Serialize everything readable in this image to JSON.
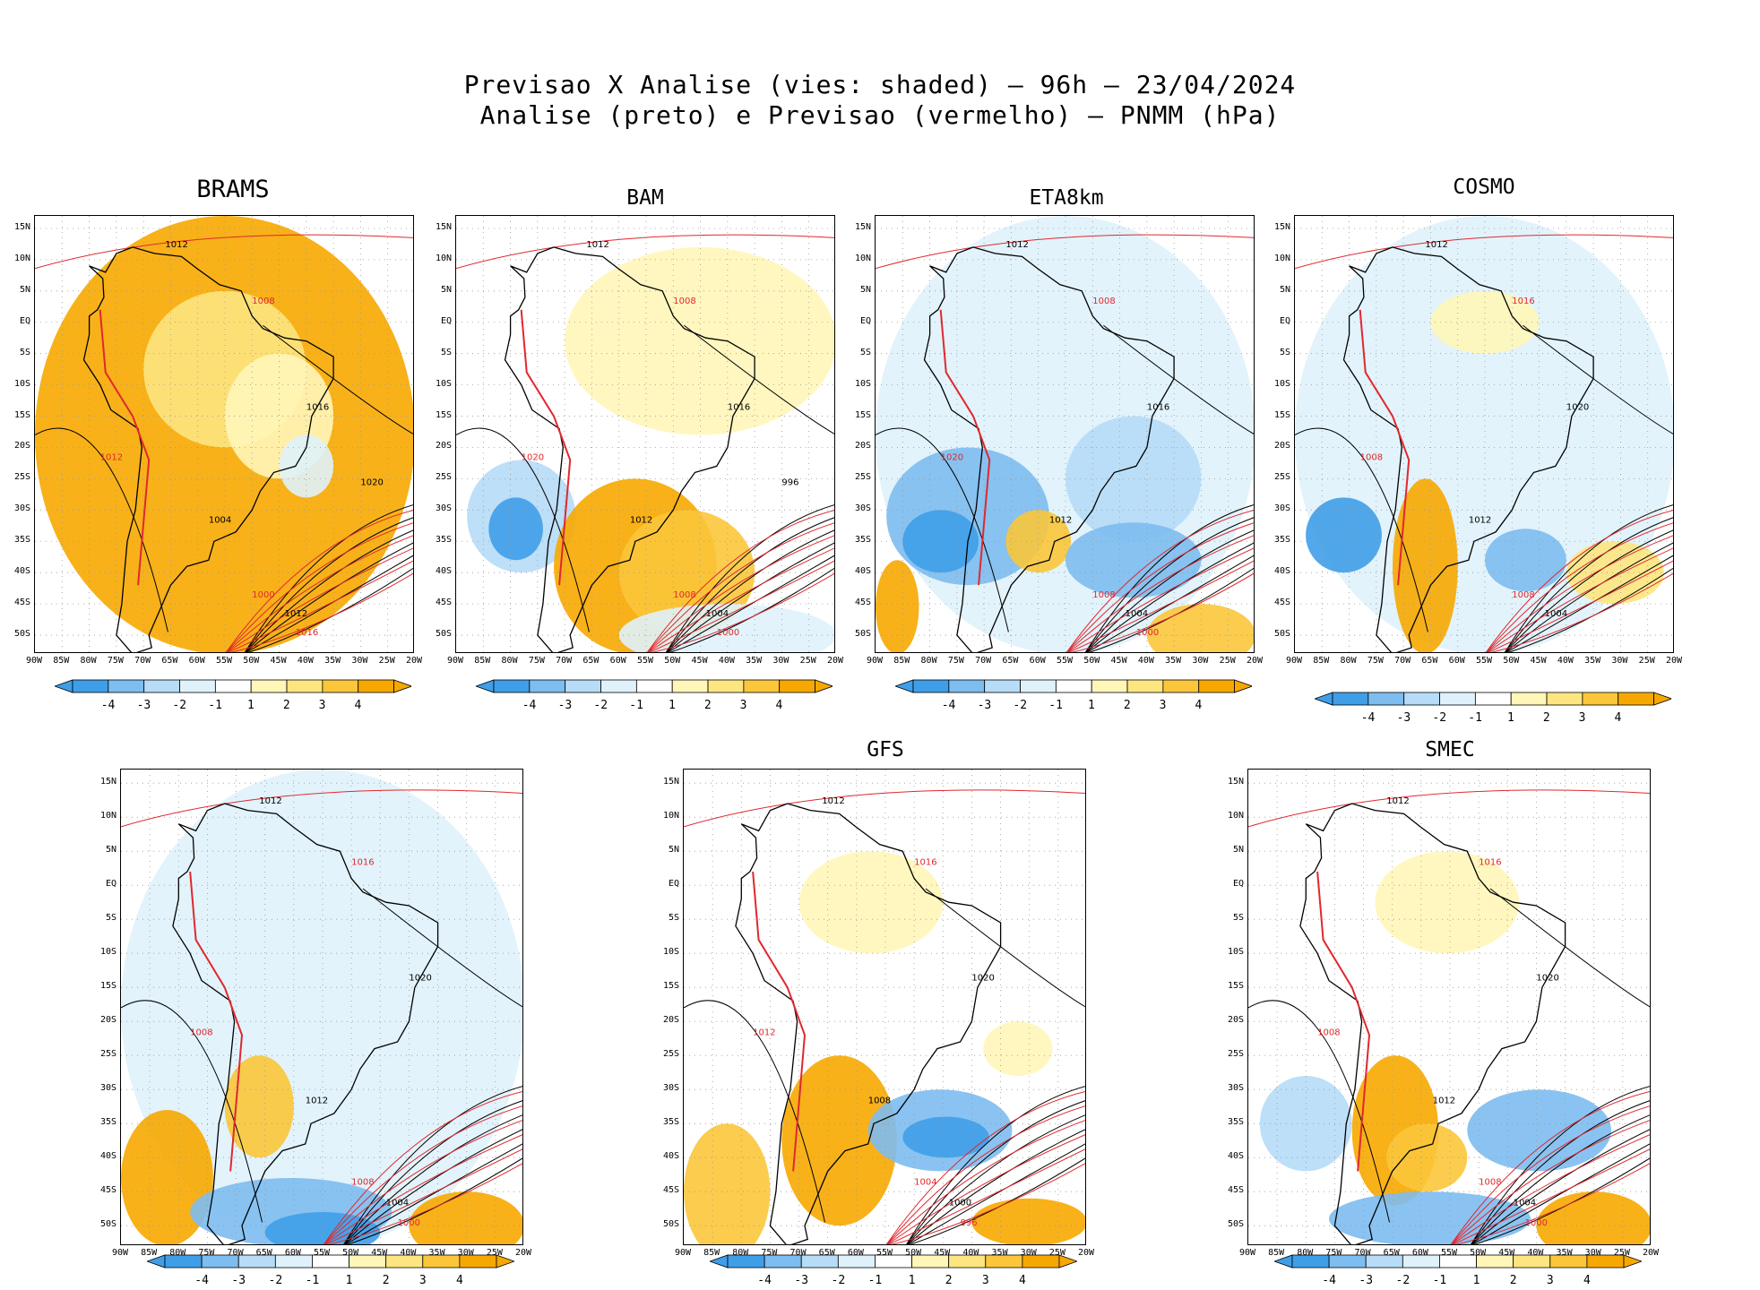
{
  "header": {
    "line1": "Previsao X Analise (vies: shaded) – 96h – 23/04/2024",
    "line2": "Analise (preto) e Previsao (vermelho) – PNMM (hPa)"
  },
  "lat_labels": [
    "15N",
    "10N",
    "5N",
    "EQ",
    "5S",
    "10S",
    "15S",
    "20S",
    "25S",
    "30S",
    "35S",
    "40S",
    "45S",
    "50S"
  ],
  "lon_labels": [
    "90W",
    "85W",
    "80W",
    "75W",
    "70W",
    "65W",
    "60W",
    "55W",
    "50W",
    "45W",
    "40W",
    "35W",
    "30W",
    "25W",
    "20W"
  ],
  "colorbar_labels": [
    "-4",
    "-3",
    "-2",
    "-1",
    "1",
    "2",
    "3",
    "4"
  ],
  "colors": {
    "neg4": "#3f9ee8",
    "neg3": "#7dbdf0",
    "neg2": "#b6dcf7",
    "neg1": "#dff2fb",
    "pos1": "#fff6b8",
    "pos2": "#fde680",
    "pos3": "#fbc63a",
    "pos4": "#f7a800",
    "analysis_line": "#000000",
    "forecast_line": "#e0282e"
  },
  "panels": [
    {
      "key": "brams",
      "title": "BRAMS"
    },
    {
      "key": "bam",
      "title": "BAM"
    },
    {
      "key": "eta",
      "title": "ETA8km"
    },
    {
      "key": "cosmo",
      "title": "COSMO"
    },
    {
      "key": "unnamed",
      "title": ""
    },
    {
      "key": "gfs",
      "title": "GFS"
    },
    {
      "key": "smec",
      "title": "SMEC"
    }
  ],
  "isobar_labels": {
    "brams": [
      "1012",
      "1008",
      "1016",
      "1012",
      "1004",
      "1000",
      "1012",
      "1016",
      "1020"
    ],
    "bam": [
      "1012",
      "1008",
      "1016",
      "1020",
      "1012",
      "1008",
      "1004",
      "1000",
      "996"
    ],
    "eta": [
      "1012",
      "1008",
      "1016",
      "1020",
      "1012",
      "1008",
      "1004",
      "1000"
    ],
    "cosmo": [
      "1012",
      "1016",
      "1020",
      "1008",
      "1012",
      "1008",
      "1004"
    ],
    "unnamed": [
      "1012",
      "1016",
      "1020",
      "1008",
      "1012",
      "1008",
      "1004",
      "1000"
    ],
    "gfs": [
      "1012",
      "1016",
      "1020",
      "1012",
      "1008",
      "1004",
      "1000",
      "996"
    ],
    "smec": [
      "1012",
      "1016",
      "1020",
      "1008",
      "1012",
      "1008",
      "1004",
      "1000"
    ]
  }
}
